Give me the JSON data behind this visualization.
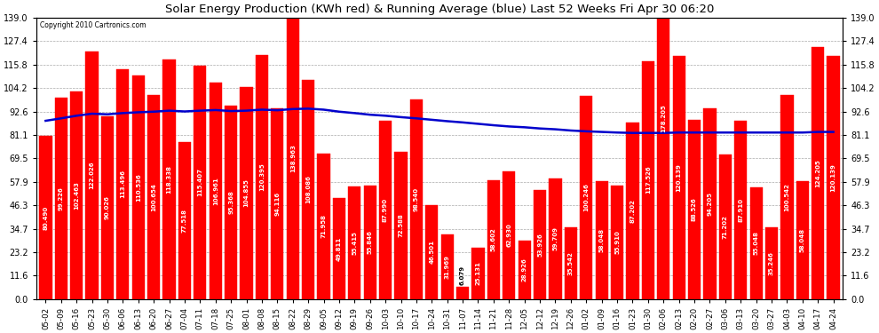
{
  "title": "Solar Energy Production (KWh red) & Running Average (blue) Last 52 Weeks Fri Apr 30 06:20",
  "copyright": "Copyright 2010 Cartronics.com",
  "bar_color": "#ff0000",
  "avg_line_color": "#0000cc",
  "background_color": "#ffffff",
  "plot_bg_color": "#ffffff",
  "grid_color": "#aaaaaa",
  "ylim": [
    0,
    139.0
  ],
  "yticks": [
    0.0,
    11.6,
    23.2,
    34.7,
    46.3,
    57.9,
    69.5,
    81.1,
    92.6,
    104.2,
    115.8,
    127.4,
    139.0
  ],
  "categories": [
    "05-02",
    "05-09",
    "05-16",
    "05-23",
    "05-30",
    "06-06",
    "06-13",
    "06-20",
    "06-27",
    "07-04",
    "07-11",
    "07-18",
    "07-25",
    "08-01",
    "08-08",
    "08-15",
    "08-22",
    "08-29",
    "09-05",
    "09-12",
    "09-19",
    "09-26",
    "10-03",
    "10-10",
    "10-17",
    "10-24",
    "10-31",
    "11-07",
    "11-14",
    "11-21",
    "11-28",
    "12-05",
    "12-12",
    "12-19",
    "12-26",
    "01-02",
    "01-09",
    "01-16",
    "01-23",
    "01-30",
    "02-06",
    "02-13",
    "02-20",
    "02-27",
    "03-06",
    "03-13",
    "03-20",
    "03-27",
    "04-03",
    "04-10",
    "04-17",
    "04-24"
  ],
  "values": [
    80.49,
    99.226,
    102.463,
    122.026,
    90.026,
    113.496,
    110.536,
    100.654,
    118.338,
    77.518,
    115.407,
    106.961,
    95.368,
    104.855,
    120.395,
    94.116,
    138.963,
    108.086,
    71.958,
    49.811,
    55.415,
    55.846,
    87.99,
    72.588,
    98.54,
    46.501,
    31.969,
    6.079,
    25.131,
    58.602,
    62.93,
    28.926,
    53.926,
    59.709,
    35.542,
    100.246,
    58.048,
    55.91,
    87.202,
    117.526,
    178.205,
    120.139,
    88.526,
    94.205,
    71.202,
    87.91,
    55.048,
    35.246,
    100.542,
    58.048,
    124.205,
    120.139
  ],
  "running_avg": [
    88.0,
    89.2,
    90.5,
    91.5,
    91.2,
    91.8,
    92.2,
    92.5,
    93.0,
    92.6,
    93.0,
    93.3,
    92.8,
    93.0,
    93.5,
    93.2,
    93.8,
    94.0,
    93.5,
    92.5,
    91.8,
    91.0,
    90.5,
    89.8,
    89.2,
    88.5,
    87.8,
    87.2,
    86.5,
    85.8,
    85.2,
    84.8,
    84.2,
    83.8,
    83.2,
    82.8,
    82.5,
    82.2,
    82.0,
    82.0,
    82.0,
    82.2,
    82.2,
    82.2,
    82.2,
    82.2,
    82.2,
    82.2,
    82.2,
    82.2,
    82.5,
    82.5
  ]
}
